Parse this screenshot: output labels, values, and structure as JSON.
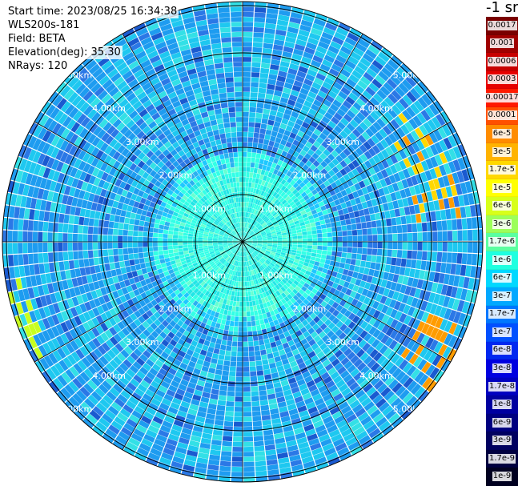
{
  "header": {
    "start_time": "Start time: 2023/08/25 16:34:38",
    "instrument": "WLS200s-181",
    "field": "Field: BETA",
    "elevation": "Elevation(deg): 35.30",
    "nrays": "NRays: 120"
  },
  "colorbar": {
    "unit": "-1 sr",
    "labels": [
      "0.0017",
      "0.001",
      "0.0006",
      "0.0003",
      "0.00017",
      "0.0001",
      "6e-5",
      "3e-5",
      "1.7e-5",
      "1e-5",
      "6e-6",
      "3e-6",
      "1.7e-6",
      "1e-6",
      "6e-7",
      "3e-7",
      "1.7e-7",
      "1e-7",
      "6e-8",
      "3e-8",
      "1.7e-8",
      "1e-8",
      "6e-9",
      "3e-9",
      "1.7e-9",
      "1e-9"
    ],
    "colors": [
      "#7a0000",
      "#a00000",
      "#c80000",
      "#e60000",
      "#ff1a00",
      "#ff5000",
      "#ff8c00",
      "#ffb300",
      "#ffd800",
      "#ffff00",
      "#d8ff1a",
      "#9cff5a",
      "#5affa0",
      "#1effe0",
      "#00d8ff",
      "#00a8ff",
      "#0078ff",
      "#0050ff",
      "#0028f0",
      "#0000e0",
      "#0000c0",
      "#0000a0",
      "#000080",
      "#000060",
      "#000040",
      "#000020"
    ]
  },
  "range_labels": [
    "1.00km",
    "2.00km",
    "3.00km",
    "4.00km",
    "5.00km"
  ],
  "scan": {
    "rays": 120,
    "gates": 48
  }
}
